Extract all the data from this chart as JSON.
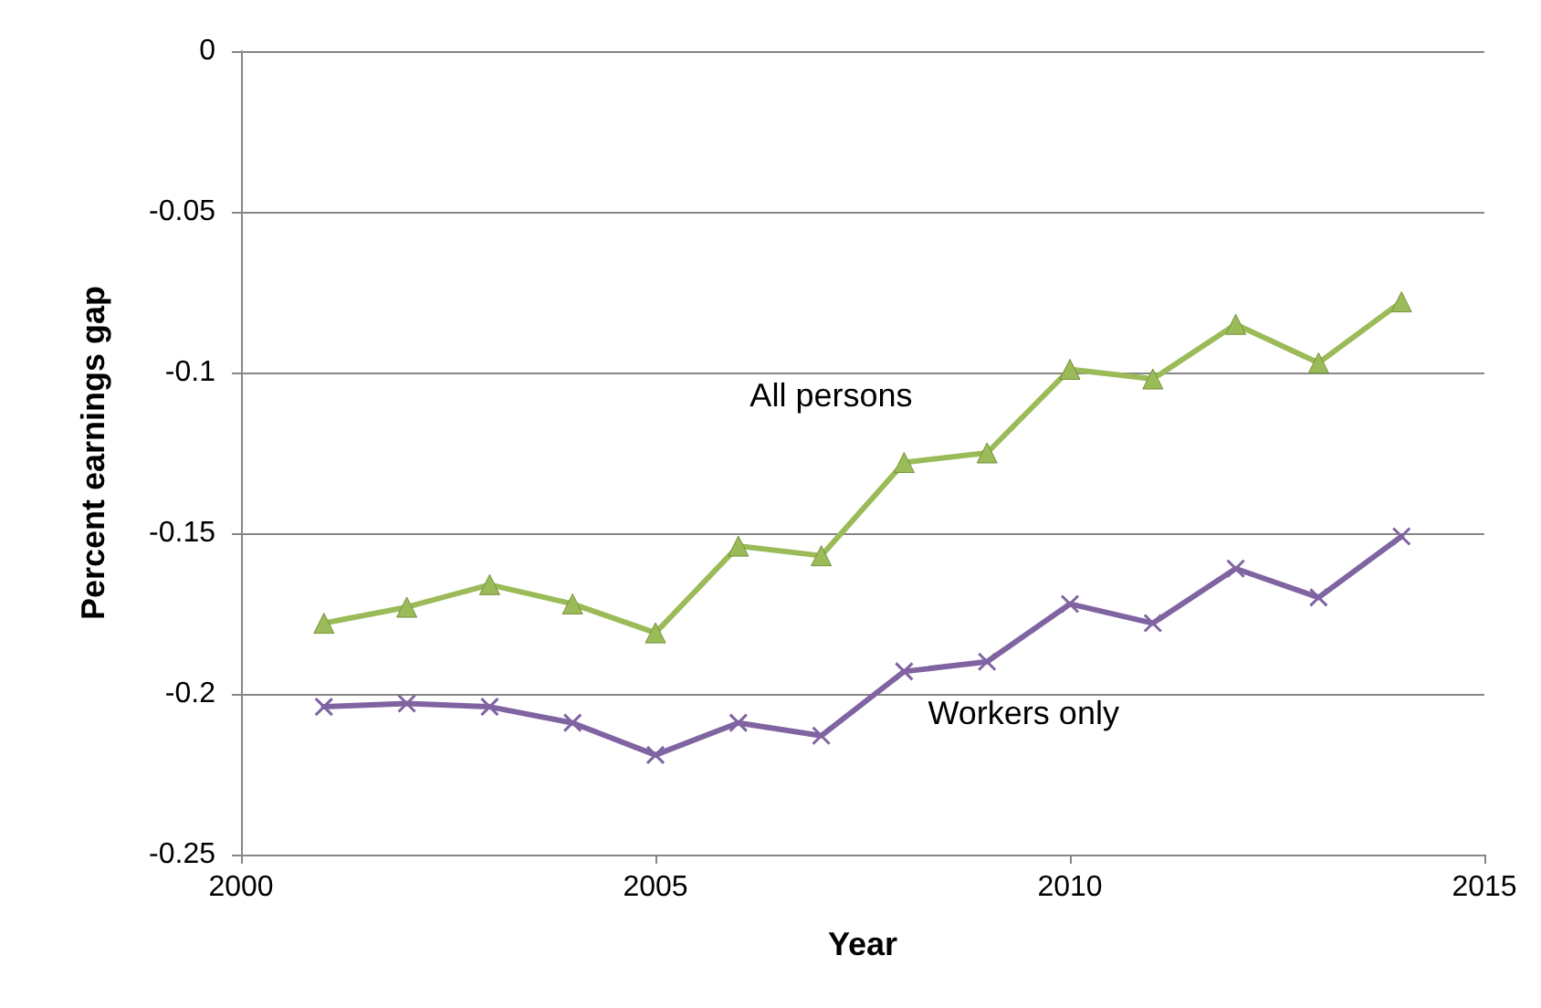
{
  "chart_data": {
    "type": "line",
    "xlabel": "Year",
    "ylabel": "Percent earnings gap",
    "x": [
      2001,
      2002,
      2003,
      2004,
      2005,
      2006,
      2007,
      2008,
      2009,
      2010,
      2011,
      2012,
      2013,
      2014
    ],
    "series": [
      {
        "name": "All persons",
        "color": "#9bbb59",
        "marker": "triangle",
        "values": [
          -0.178,
          -0.173,
          -0.166,
          -0.172,
          -0.181,
          -0.154,
          -0.157,
          -0.128,
          -0.125,
          -0.099,
          -0.102,
          -0.085,
          -0.097,
          -0.078
        ]
      },
      {
        "name": "Workers only",
        "color": "#8064a2",
        "marker": "cross",
        "values": [
          -0.204,
          -0.203,
          -0.204,
          -0.209,
          -0.219,
          -0.209,
          -0.213,
          -0.193,
          -0.19,
          -0.172,
          -0.178,
          -0.161,
          -0.17,
          -0.151
        ]
      }
    ],
    "xlim": [
      2000,
      2015
    ],
    "xticks": [
      2000,
      2005,
      2010,
      2015
    ],
    "ylim": [
      -0.25,
      0
    ],
    "yticks": [
      -0.25,
      -0.2,
      -0.15,
      -0.1,
      -0.05,
      0
    ],
    "grid": "y",
    "line_style": "solid"
  }
}
